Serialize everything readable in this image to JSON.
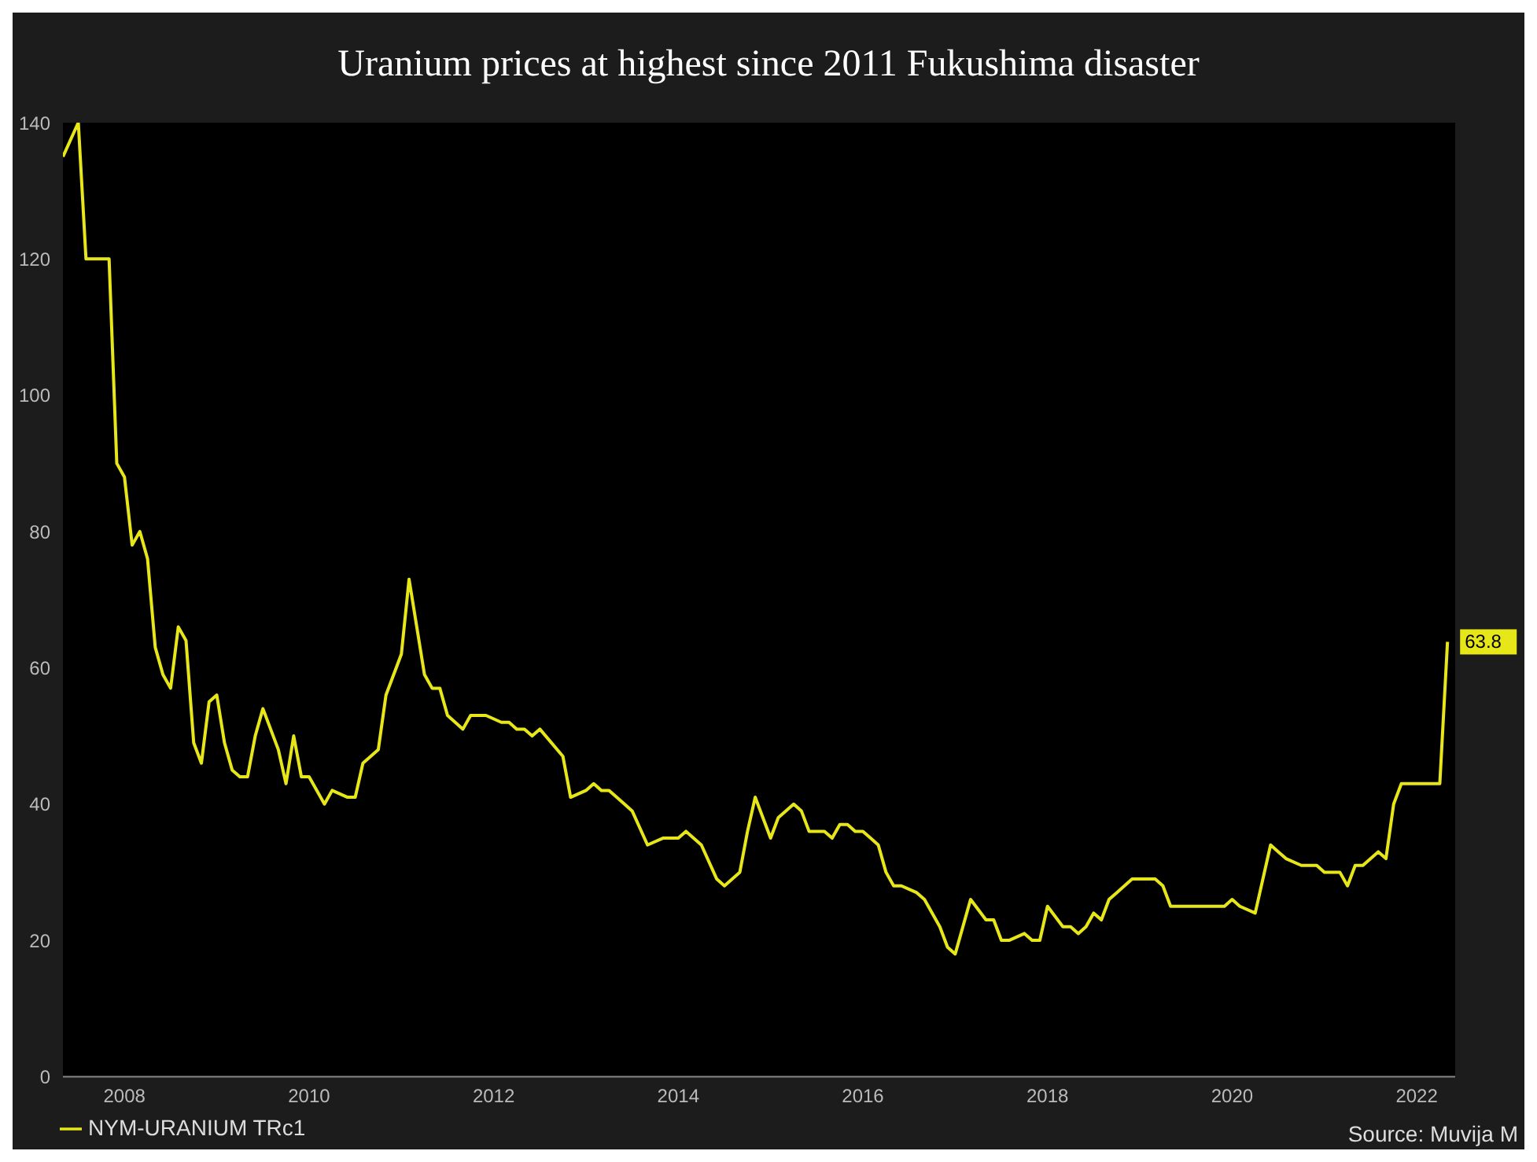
{
  "chart_data": {
    "type": "line",
    "title": "Uranium prices at highest since 2011 Fukushima disaster",
    "x": [
      "2007-05",
      "2007-07",
      "2007-08",
      "2007-11",
      "2007-12",
      "2008-01",
      "2008-02",
      "2008-03",
      "2008-04",
      "2008-05",
      "2008-06",
      "2008-07",
      "2008-08",
      "2008-09",
      "2008-10",
      "2008-11",
      "2008-12",
      "2009-01",
      "2009-02",
      "2009-03",
      "2009-04",
      "2009-05",
      "2009-06",
      "2009-07",
      "2009-09",
      "2009-10",
      "2009-11",
      "2009-12",
      "2010-01",
      "2010-03",
      "2010-04",
      "2010-06",
      "2010-07",
      "2010-08",
      "2010-10",
      "2010-11",
      "2011-01",
      "2011-02",
      "2011-03",
      "2011-04",
      "2011-05",
      "2011-06",
      "2011-07",
      "2011-09",
      "2011-10",
      "2011-12",
      "2012-02",
      "2012-03",
      "2012-04",
      "2012-05",
      "2012-06",
      "2012-07",
      "2012-10",
      "2012-11",
      "2013-01",
      "2013-02",
      "2013-03",
      "2013-04",
      "2013-06",
      "2013-07",
      "2013-09",
      "2013-11",
      "2014-01",
      "2014-02",
      "2014-04",
      "2014-06",
      "2014-07",
      "2014-09",
      "2014-10",
      "2014-11",
      "2015-01",
      "2015-02",
      "2015-04",
      "2015-05",
      "2015-06",
      "2015-08",
      "2015-09",
      "2015-10",
      "2015-11",
      "2015-12",
      "2016-01",
      "2016-02",
      "2016-03",
      "2016-04",
      "2016-05",
      "2016-06",
      "2016-08",
      "2016-09",
      "2016-11",
      "2016-12",
      "2017-01",
      "2017-03",
      "2017-05",
      "2017-06",
      "2017-07",
      "2017-08",
      "2017-10",
      "2017-11",
      "2017-12",
      "2018-01",
      "2018-03",
      "2018-04",
      "2018-05",
      "2018-06",
      "2018-07",
      "2018-08",
      "2018-09",
      "2018-10",
      "2018-12",
      "2019-02",
      "2019-03",
      "2019-04",
      "2019-05",
      "2019-07",
      "2019-08",
      "2019-09",
      "2019-10",
      "2019-12",
      "2020-01",
      "2020-02",
      "2020-04",
      "2020-06",
      "2020-07",
      "2020-08",
      "2020-10",
      "2020-12",
      "2021-01",
      "2021-03",
      "2021-04",
      "2021-05",
      "2021-06",
      "2021-08",
      "2021-09",
      "2021-10",
      "2021-11",
      "2022-04",
      "2022-05"
    ],
    "series": [
      {
        "name": "NYM-URANIUM TRc1",
        "color": "#e6e619",
        "values": [
          135,
          140,
          120,
          120,
          90,
          88,
          78,
          80,
          76,
          63,
          59,
          57,
          66,
          64,
          49,
          46,
          55,
          56,
          49,
          45,
          44,
          44,
          50,
          54,
          48,
          43,
          50,
          44,
          44,
          40,
          42,
          41,
          41,
          46,
          48,
          56,
          62,
          73,
          66,
          59,
          57,
          57,
          53,
          51,
          53,
          53,
          52,
          52,
          51,
          51,
          50,
          51,
          47,
          41,
          42,
          43,
          42,
          42,
          40,
          39,
          34,
          35,
          35,
          36,
          34,
          29,
          28,
          30,
          36,
          41,
          35,
          38,
          40,
          39,
          36,
          36,
          35,
          37,
          37,
          36,
          36,
          35,
          34,
          30,
          28,
          28,
          27,
          26,
          22,
          19,
          18,
          26,
          23,
          23,
          20,
          20,
          21,
          20,
          20,
          25,
          22,
          22,
          21,
          22,
          24,
          23,
          26,
          27,
          29,
          29,
          29,
          28,
          25,
          25,
          25,
          25,
          25,
          25,
          26,
          25,
          24,
          34,
          33,
          32,
          31,
          31,
          30,
          30,
          28,
          31,
          31,
          33,
          32,
          40,
          43,
          43,
          63.8
        ],
        "value_labels": [
          null,
          null,
          null,
          null,
          null,
          null,
          null,
          null,
          null,
          null,
          null,
          null,
          null,
          null,
          null,
          null,
          null,
          null,
          null,
          null,
          null,
          null,
          null,
          null,
          null,
          null,
          null,
          null,
          null,
          null,
          null,
          null,
          null,
          null,
          null,
          null,
          null,
          null,
          null,
          null,
          null,
          null,
          null,
          null,
          null,
          null,
          null,
          null,
          null,
          null,
          null,
          null,
          null,
          null,
          null,
          null,
          null,
          null,
          null,
          null,
          null,
          null,
          null,
          null,
          null,
          null,
          null,
          null,
          null,
          null,
          null,
          null,
          null,
          null,
          null,
          null,
          null,
          null,
          null,
          null,
          null,
          null,
          null,
          null,
          null,
          null,
          null,
          null,
          null,
          null,
          null,
          null,
          null,
          null,
          null,
          null,
          null,
          null,
          null,
          null,
          null,
          null,
          null,
          null,
          null,
          null,
          null,
          null,
          null,
          null,
          null,
          null,
          null,
          null,
          null,
          null,
          null,
          null,
          null,
          null,
          null,
          null,
          null,
          null,
          null,
          null,
          null,
          null,
          null,
          null,
          null,
          null,
          null,
          null,
          null,
          null,
          "63.8"
        ]
      }
    ],
    "xlim": [
      "2007-05",
      "2022-06"
    ],
    "xticks": [
      "2008",
      "2010",
      "2012",
      "2014",
      "2016",
      "2018",
      "2020",
      "2022"
    ],
    "ylim": [
      0,
      140
    ],
    "yticks": [
      0,
      20,
      40,
      60,
      80,
      100,
      120,
      140
    ],
    "grid": false,
    "legend": "bottom left",
    "marker": "none",
    "line_style": "solid",
    "annotations": [
      "Source: Muvija M"
    ]
  }
}
